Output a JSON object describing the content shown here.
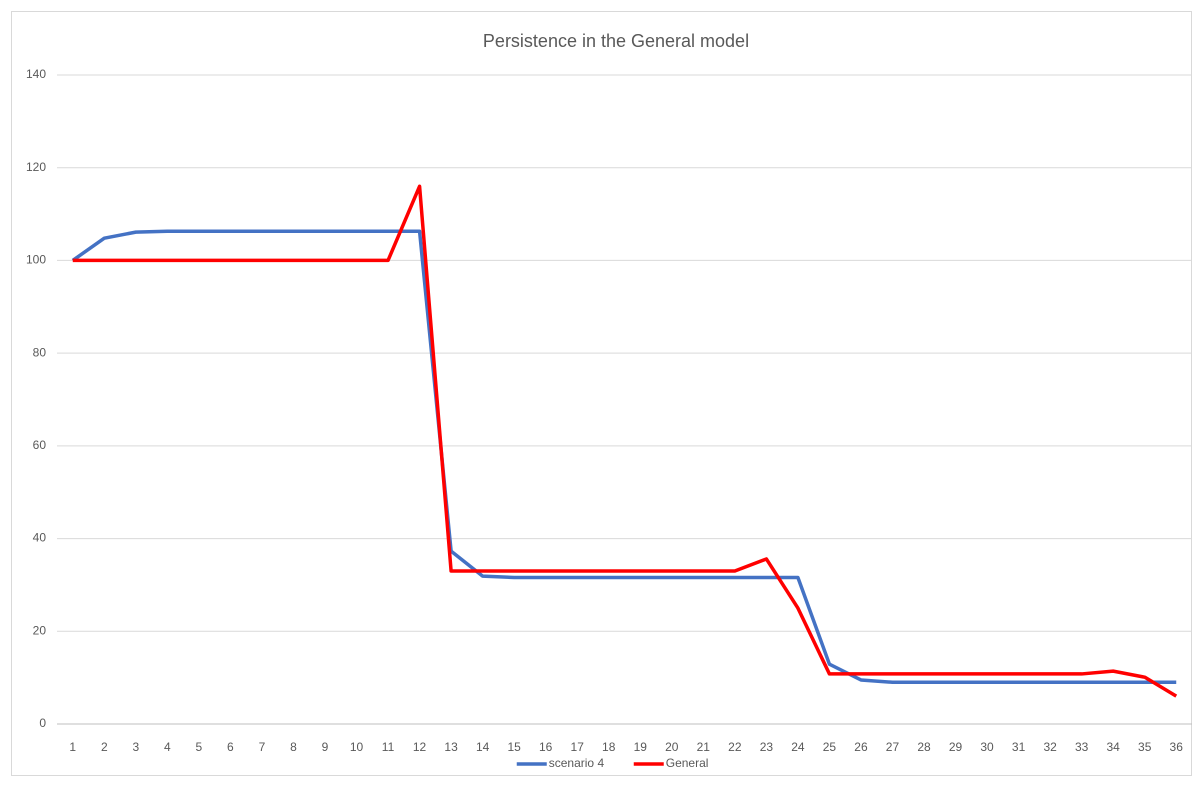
{
  "chart_data": {
    "type": "line",
    "title": "Persistence in the General model",
    "categories": [
      1,
      2,
      3,
      4,
      5,
      6,
      7,
      8,
      9,
      10,
      11,
      12,
      13,
      14,
      15,
      16,
      17,
      18,
      19,
      20,
      21,
      22,
      23,
      24,
      25,
      26,
      27,
      28,
      29,
      30,
      31,
      32,
      33,
      34,
      35,
      36
    ],
    "series": [
      {
        "name": "scenario 4",
        "color": "#4472c4",
        "values": [
          100,
          104.8,
          106.1,
          106.3,
          106.3,
          106.3,
          106.3,
          106.3,
          106.3,
          106.3,
          106.3,
          106.3,
          37.3,
          31.9,
          31.6,
          31.6,
          31.6,
          31.6,
          31.6,
          31.6,
          31.6,
          31.6,
          31.6,
          31.6,
          12.9,
          9.5,
          9,
          9,
          9,
          9,
          9,
          9,
          9,
          9,
          9,
          9
        ]
      },
      {
        "name": "General",
        "color": "#ff0000",
        "values": [
          100,
          100,
          100,
          100,
          100,
          100,
          100,
          100,
          100,
          100,
          100,
          116,
          33,
          33,
          33,
          33,
          33,
          33,
          33,
          33,
          33,
          33,
          35.6,
          25,
          10.8,
          10.8,
          10.8,
          10.8,
          10.8,
          10.8,
          10.8,
          10.8,
          10.8,
          11.4,
          10.1,
          6
        ]
      }
    ],
    "ylim": [
      0,
      140
    ],
    "yticks": [
      0,
      20,
      40,
      60,
      80,
      100,
      120,
      140
    ],
    "grid": true,
    "legend": "bottom"
  }
}
